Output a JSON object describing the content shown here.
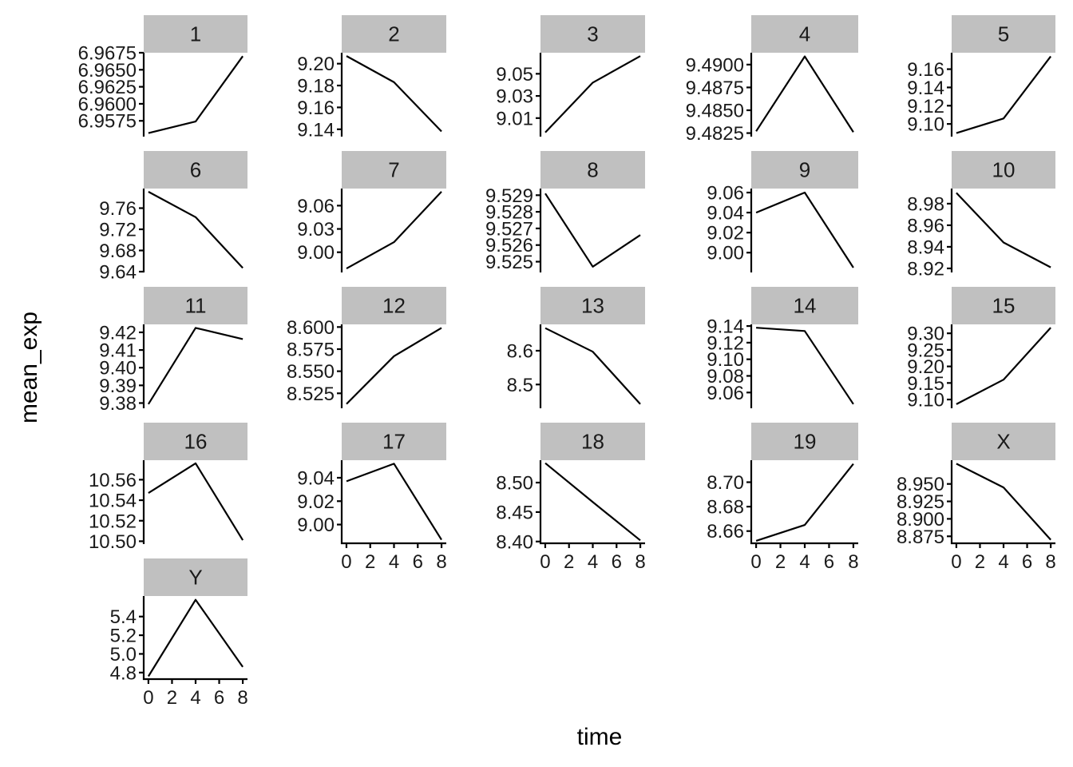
{
  "chart_data": {
    "type": "line",
    "layout": "facet_wrap",
    "xlabel": "time",
    "ylabel": "mean_exp",
    "x_ticks": [
      0,
      2,
      4,
      6,
      8
    ],
    "xlim": [
      -0.4,
      8.4
    ],
    "panels": [
      {
        "label": "1",
        "x": [
          0,
          4,
          8
        ],
        "y": [
          6.9557,
          6.9574,
          6.967
        ],
        "y_ticks": [
          "6.9575",
          "6.9600",
          "6.9625",
          "6.9650",
          "6.9675"
        ],
        "ylim": [
          6.9553,
          6.9675
        ]
      },
      {
        "label": "2",
        "x": [
          0,
          4,
          8
        ],
        "y": [
          9.207,
          9.183,
          9.138
        ],
        "y_ticks": [
          "9.14",
          "9.16",
          "9.18",
          "9.20"
        ],
        "ylim": [
          9.134,
          9.21
        ]
      },
      {
        "label": "3",
        "x": [
          0,
          4,
          8
        ],
        "y": [
          8.997,
          9.042,
          9.066
        ],
        "y_ticks": [
          "9.01",
          "9.03",
          "9.05"
        ],
        "ylim": [
          8.994,
          9.069
        ]
      },
      {
        "label": "4",
        "x": [
          0,
          4,
          8
        ],
        "y": [
          9.4827,
          9.4909,
          9.4826
        ],
        "y_ticks": [
          "9.4825",
          "9.4850",
          "9.4875",
          "9.4900"
        ],
        "ylim": [
          9.4822,
          9.4913
        ]
      },
      {
        "label": "5",
        "x": [
          0,
          4,
          8
        ],
        "y": [
          9.09,
          9.106,
          9.174
        ],
        "y_ticks": [
          "9.10",
          "9.12",
          "9.14",
          "9.16"
        ],
        "ylim": [
          9.087,
          9.178
        ]
      },
      {
        "label": "6",
        "x": [
          0,
          4,
          8
        ],
        "y": [
          9.791,
          9.743,
          9.647
        ],
        "y_ticks": [
          "9.64",
          "9.68",
          "9.72",
          "9.76"
        ],
        "ylim": [
          9.64,
          9.797
        ]
      },
      {
        "label": "7",
        "x": [
          0,
          4,
          8
        ],
        "y": [
          8.979,
          9.013,
          9.078
        ],
        "y_ticks": [
          "9.00",
          "9.03",
          "9.06"
        ],
        "ylim": [
          8.975,
          9.082
        ]
      },
      {
        "label": "8",
        "x": [
          0,
          4,
          8
        ],
        "y": [
          9.5291,
          9.5247,
          9.5266
        ],
        "y_ticks": [
          "9.525",
          "9.526",
          "9.527",
          "9.528",
          "9.529"
        ],
        "ylim": [
          9.5244,
          9.5294
        ]
      },
      {
        "label": "9",
        "x": [
          0,
          4,
          8
        ],
        "y": [
          9.04,
          9.06,
          8.985
        ],
        "y_ticks": [
          "9.00",
          "9.02",
          "9.04",
          "9.06"
        ],
        "ylim": [
          8.981,
          9.064
        ]
      },
      {
        "label": "10",
        "x": [
          0,
          4,
          8
        ],
        "y": [
          8.99,
          8.944,
          8.921
        ],
        "y_ticks": [
          "8.92",
          "8.94",
          "8.96",
          "8.98"
        ],
        "ylim": [
          8.917,
          8.994
        ]
      },
      {
        "label": "11",
        "x": [
          0,
          4,
          8
        ],
        "y": [
          9.3794,
          9.4225,
          9.4162
        ],
        "y_ticks": [
          "9.38",
          "9.39",
          "9.40",
          "9.41",
          "9.42"
        ],
        "ylim": [
          9.3775,
          9.4245
        ]
      },
      {
        "label": "12",
        "x": [
          0,
          4,
          8
        ],
        "y": [
          8.513,
          8.567,
          8.599
        ],
        "y_ticks": [
          "8.525",
          "8.550",
          "8.575",
          "8.600"
        ],
        "ylim": [
          8.509,
          8.603
        ]
      },
      {
        "label": "13",
        "x": [
          0,
          4,
          8
        ],
        "y": [
          8.667,
          8.597,
          8.442
        ],
        "y_ticks": [
          "8.5",
          "8.6"
        ],
        "ylim": [
          8.432,
          8.678
        ]
      },
      {
        "label": "14",
        "x": [
          0,
          4,
          8
        ],
        "y": [
          9.138,
          9.134,
          9.046
        ],
        "y_ticks": [
          "9.06",
          "9.08",
          "9.10",
          "9.12",
          "9.14"
        ],
        "ylim": [
          9.042,
          9.142
        ]
      },
      {
        "label": "15",
        "x": [
          0,
          4,
          8
        ],
        "y": [
          9.086,
          9.16,
          9.317
        ],
        "y_ticks": [
          "9.10",
          "9.15",
          "9.20",
          "9.25",
          "9.30"
        ],
        "ylim": [
          9.076,
          9.327
        ]
      },
      {
        "label": "16",
        "x": [
          0,
          4,
          8
        ],
        "y": [
          10.547,
          10.576,
          10.501
        ],
        "y_ticks": [
          "10.50",
          "10.52",
          "10.54",
          "10.56"
        ],
        "ylim": [
          10.498,
          10.579
        ]
      },
      {
        "label": "17",
        "x": [
          0,
          4,
          8
        ],
        "y": [
          9.037,
          9.052,
          8.987
        ],
        "y_ticks": [
          "9.00",
          "9.02",
          "9.04"
        ],
        "ylim": [
          8.984,
          9.055
        ]
      },
      {
        "label": "18",
        "x": [
          0,
          4,
          8
        ],
        "y": [
          8.533,
          8.467,
          8.402
        ],
        "y_ticks": [
          "8.40",
          "8.45",
          "8.50"
        ],
        "ylim": [
          8.397,
          8.538
        ]
      },
      {
        "label": "19",
        "x": [
          0,
          4,
          8
        ],
        "y": [
          8.652,
          8.665,
          8.715
        ],
        "y_ticks": [
          "8.66",
          "8.68",
          "8.70"
        ],
        "ylim": [
          8.65,
          8.718
        ]
      },
      {
        "label": "X",
        "x": [
          0,
          4,
          8
        ],
        "y": [
          8.979,
          8.945,
          8.87
        ],
        "y_ticks": [
          "8.875",
          "8.900",
          "8.925",
          "8.950"
        ],
        "ylim": [
          8.865,
          8.984
        ]
      },
      {
        "label": "Y",
        "x": [
          0,
          4,
          8
        ],
        "y": [
          4.76,
          5.58,
          4.86
        ],
        "y_ticks": [
          "4.8",
          "5.0",
          "5.2",
          "5.4"
        ],
        "ylim": [
          4.73,
          5.62
        ]
      }
    ],
    "x_axis_shown_on": [
      "17",
      "18",
      "19",
      "X",
      "Y"
    ]
  }
}
